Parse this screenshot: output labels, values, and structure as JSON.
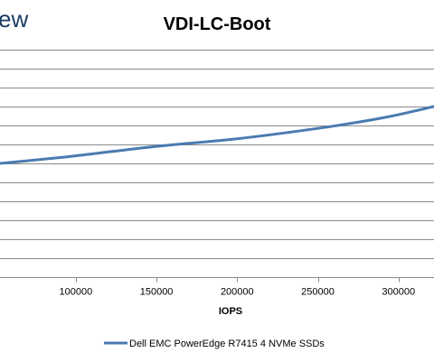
{
  "watermark": {
    "text": "ew"
  },
  "chart_data": {
    "type": "line",
    "title": "VDI-LC-Boot",
    "xlabel": "IOPS",
    "ylabel": "",
    "x_ticks": [
      100000,
      150000,
      200000,
      250000,
      300000
    ],
    "xlim": [
      53000,
      322000
    ],
    "ylim": [
      0,
      12
    ],
    "y_gridlines": [
      1,
      2,
      3,
      4,
      5,
      6,
      7,
      8,
      9,
      10,
      11,
      12
    ],
    "grid": true,
    "legend_position": "bottom",
    "series": [
      {
        "name": "Dell EMC PowerEdge R7415 4 NVMe SSDs",
        "color": "#4a7ab0",
        "x": [
          53000,
          100000,
          150000,
          200000,
          250000,
          290000,
          322000
        ],
        "y": [
          6.0,
          6.4,
          6.9,
          7.3,
          7.85,
          8.4,
          9.0
        ]
      }
    ]
  }
}
